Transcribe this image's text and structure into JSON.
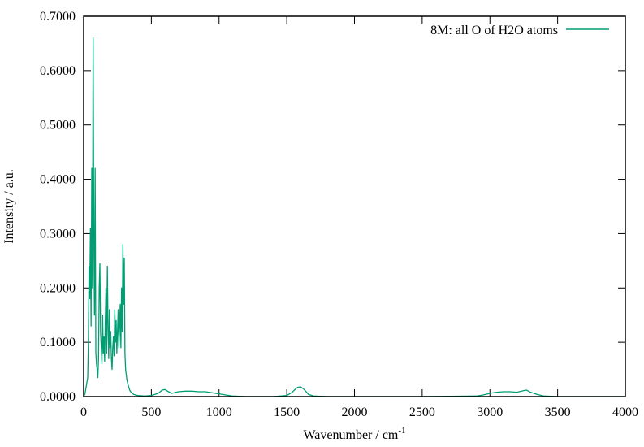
{
  "chart_data": {
    "type": "line",
    "xlabel": "Wavenumber / cm",
    "xlabel_superscript": "-1",
    "ylabel": "Intensity / a.u.",
    "xlim": [
      0,
      4000
    ],
    "ylim": [
      0,
      0.7
    ],
    "x_ticks": [
      0,
      500,
      1000,
      1500,
      2000,
      2500,
      3000,
      3500,
      4000
    ],
    "x_tick_labels": [
      "0",
      "500",
      "1000",
      "1500",
      "2000",
      "2500",
      "3000",
      "3500",
      "4000"
    ],
    "y_ticks": [
      0,
      0.1,
      0.2,
      0.3,
      0.4,
      0.5,
      0.6,
      0.7
    ],
    "y_tick_labels": [
      "0.0000",
      "0.1000",
      "0.2000",
      "0.3000",
      "0.4000",
      "0.5000",
      "0.6000",
      "0.7000"
    ],
    "grid": false,
    "legend_position": "top-right",
    "series": [
      {
        "name": "8M: all O of H2O atoms",
        "color": "#009e73",
        "x": [
          0,
          10,
          20,
          30,
          35,
          40,
          45,
          50,
          55,
          60,
          65,
          70,
          75,
          80,
          85,
          90,
          95,
          100,
          105,
          110,
          115,
          120,
          125,
          130,
          135,
          140,
          145,
          150,
          155,
          160,
          165,
          170,
          175,
          180,
          185,
          190,
          195,
          200,
          205,
          210,
          215,
          220,
          225,
          230,
          235,
          240,
          245,
          250,
          255,
          260,
          265,
          270,
          275,
          280,
          285,
          290,
          295,
          300,
          305,
          310,
          320,
          330,
          340,
          350,
          370,
          400,
          450,
          500,
          550,
          580,
          600,
          620,
          650,
          700,
          750,
          800,
          850,
          900,
          950,
          1000,
          1050,
          1100,
          1200,
          1300,
          1400,
          1500,
          1540,
          1560,
          1580,
          1600,
          1620,
          1640,
          1660,
          1700,
          1800,
          2000,
          2500,
          2900,
          2950,
          3000,
          3050,
          3100,
          3150,
          3200,
          3250,
          3270,
          3300,
          3350,
          3400,
          3500,
          4000
        ],
        "y": [
          0.0,
          0.005,
          0.02,
          0.035,
          0.1,
          0.24,
          0.18,
          0.31,
          0.13,
          0.42,
          0.2,
          0.66,
          0.3,
          0.15,
          0.42,
          0.08,
          0.06,
          0.05,
          0.035,
          0.07,
          0.2,
          0.245,
          0.12,
          0.09,
          0.06,
          0.15,
          0.08,
          0.11,
          0.065,
          0.14,
          0.2,
          0.08,
          0.24,
          0.13,
          0.07,
          0.16,
          0.09,
          0.12,
          0.07,
          0.05,
          0.09,
          0.11,
          0.075,
          0.16,
          0.1,
          0.14,
          0.08,
          0.12,
          0.16,
          0.09,
          0.13,
          0.17,
          0.09,
          0.2,
          0.12,
          0.28,
          0.17,
          0.255,
          0.08,
          0.05,
          0.03,
          0.02,
          0.012,
          0.008,
          0.004,
          0.002,
          0.001,
          0.002,
          0.006,
          0.012,
          0.013,
          0.01,
          0.006,
          0.009,
          0.01,
          0.01,
          0.009,
          0.009,
          0.007,
          0.005,
          0.003,
          0.001,
          0.0,
          0.0,
          0.0,
          0.002,
          0.008,
          0.013,
          0.017,
          0.018,
          0.015,
          0.01,
          0.004,
          0.001,
          0.0,
          0.0,
          0.0,
          0.001,
          0.003,
          0.006,
          0.008,
          0.009,
          0.009,
          0.008,
          0.011,
          0.012,
          0.008,
          0.004,
          0.001,
          0.0,
          0.0
        ]
      }
    ]
  }
}
